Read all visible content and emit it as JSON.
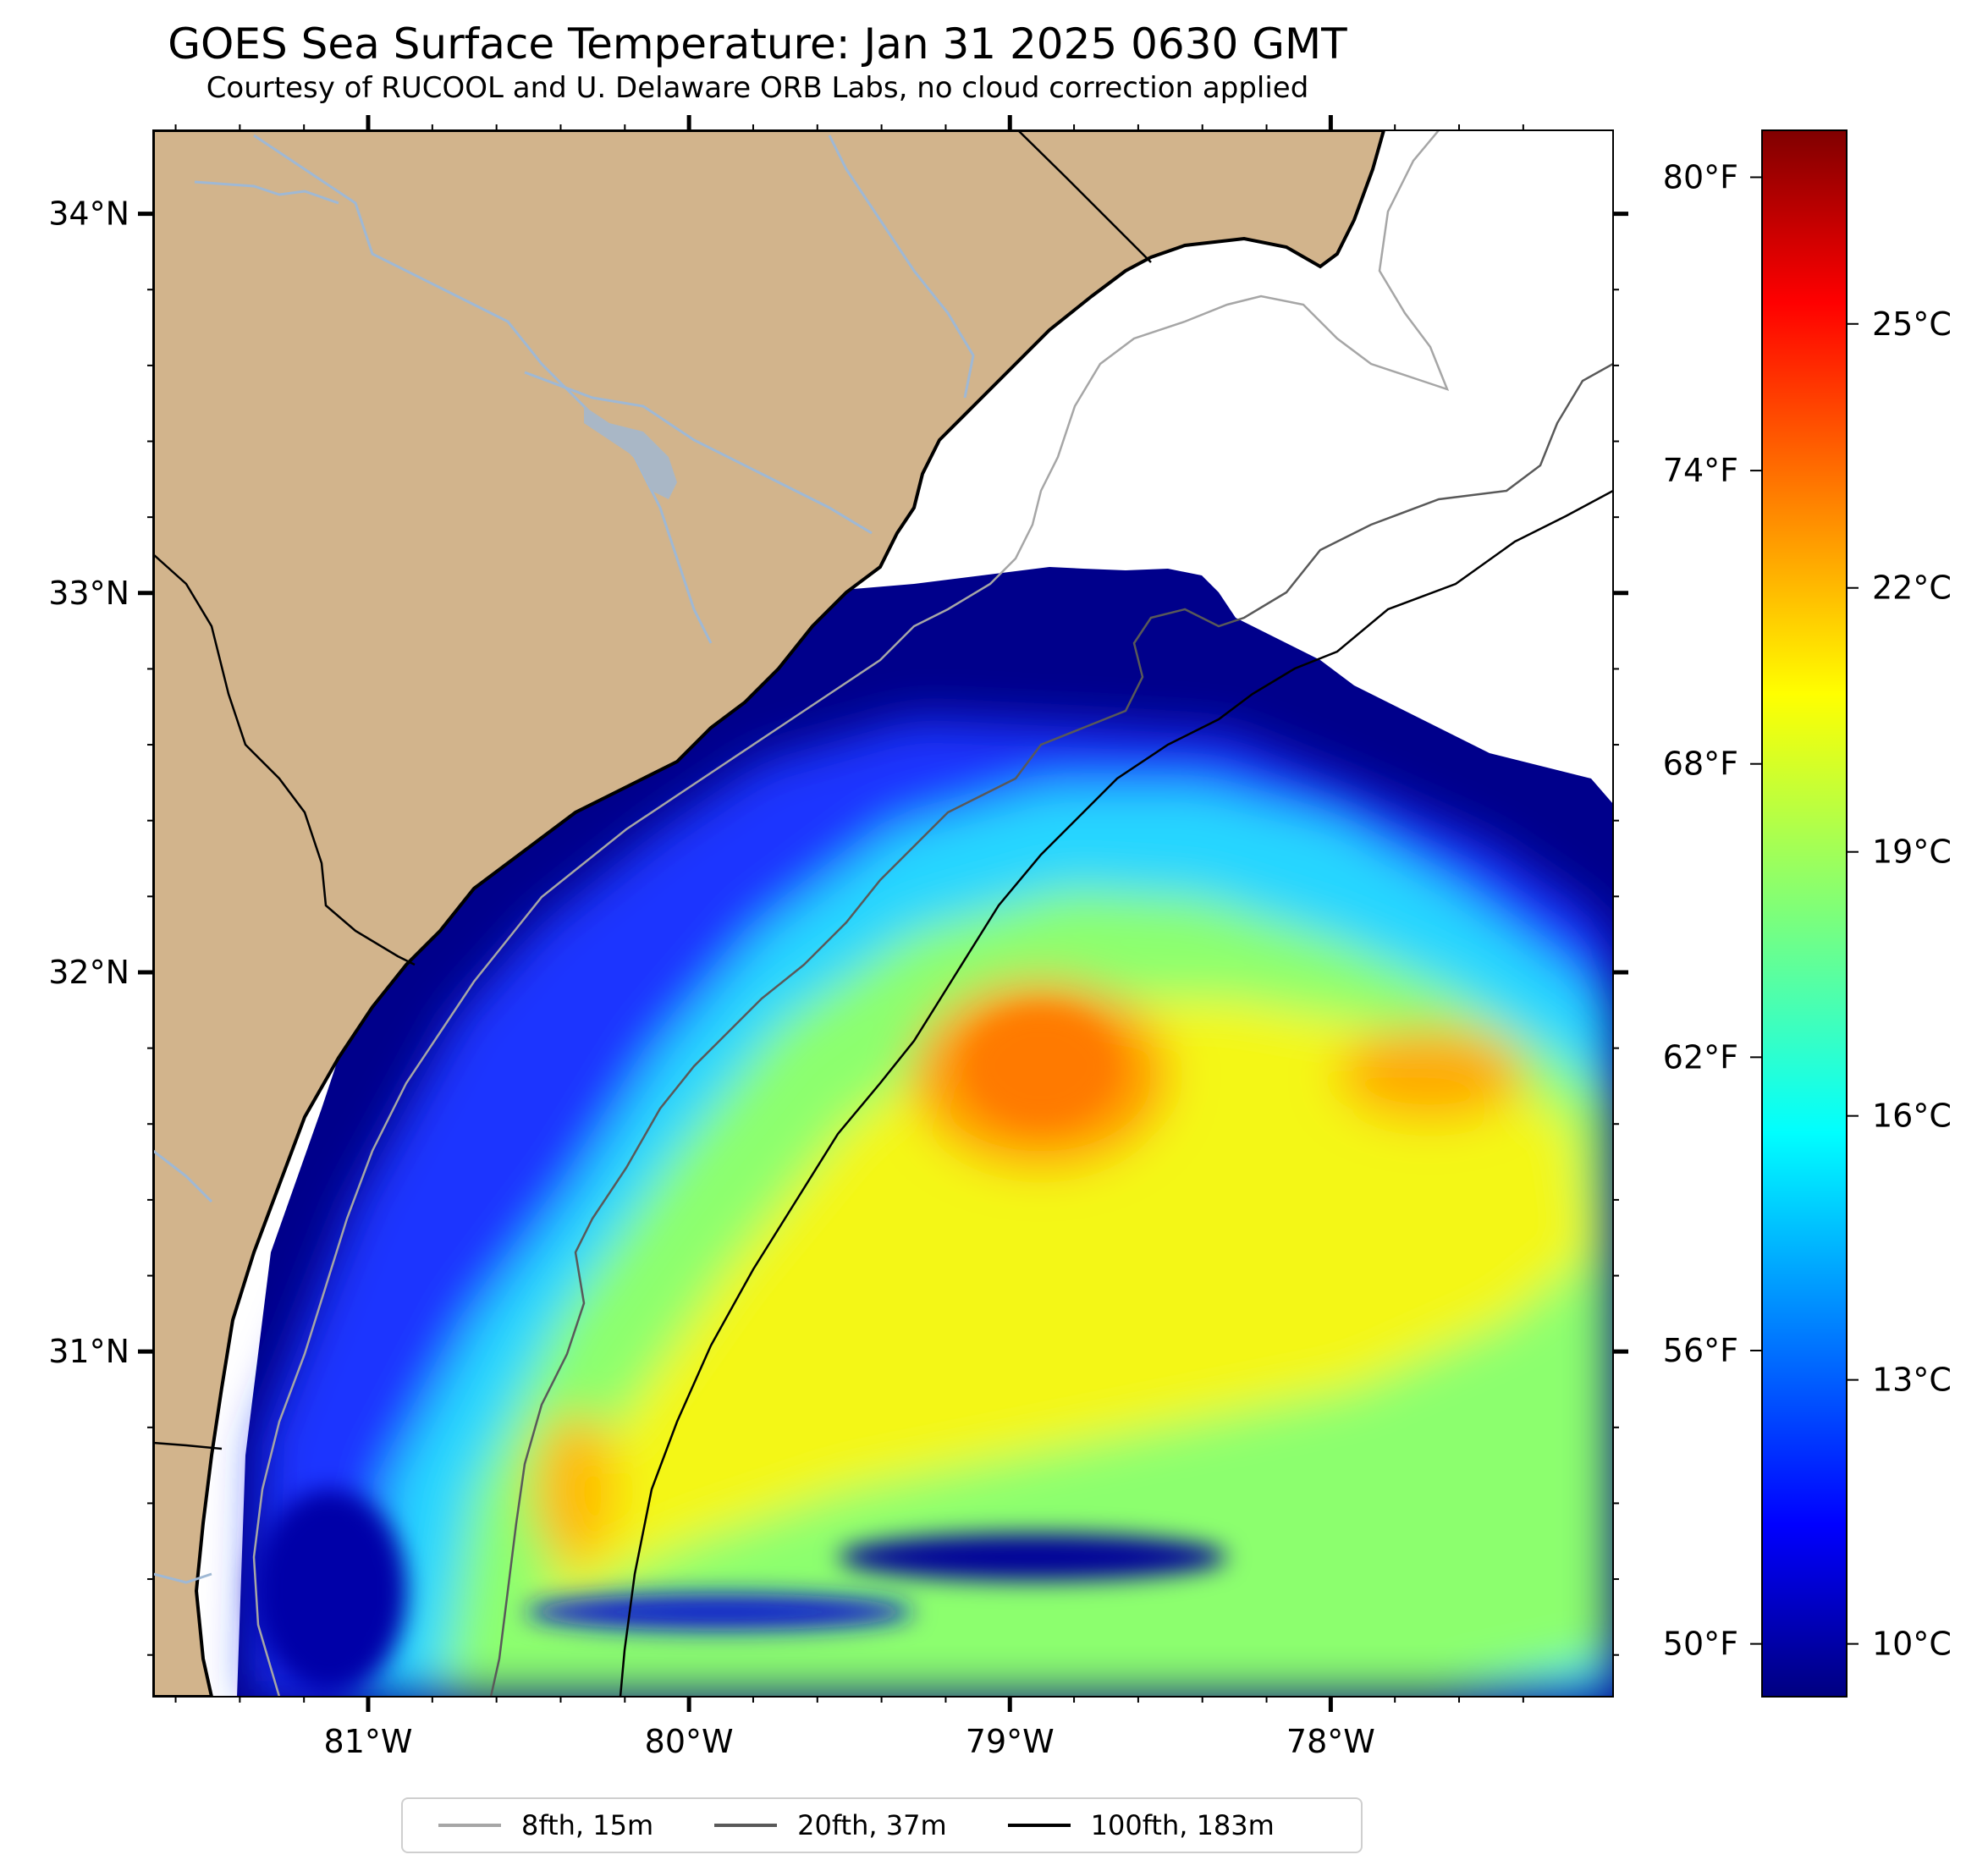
{
  "title": "GOES Sea Surface Temperature: Jan 31 2025 0630 GMT",
  "subtitle": "Courtesy of RUCOOL and U. Delaware ORB Labs, no cloud correction applied",
  "colors": {
    "land": "#d2b48c",
    "no_data": "#ffffff",
    "coastline": "#000000",
    "rivers": "#9fb8d4",
    "contour_8fth": "#a6a6a6",
    "contour_20fth": "#595959",
    "contour_100fth": "#000000"
  },
  "map": {
    "lon_range": [
      -81.67,
      -77.12
    ],
    "lat_range": [
      30.09,
      34.22
    ],
    "lat_ticks": [
      {
        "value": 34,
        "label": "34°N"
      },
      {
        "value": 33,
        "label": "33°N"
      },
      {
        "value": 32,
        "label": "32°N"
      },
      {
        "value": 31,
        "label": "31°N"
      }
    ],
    "lon_ticks": [
      {
        "value": -81,
        "label": "81°W"
      },
      {
        "value": -80,
        "label": "80°W"
      },
      {
        "value": -79,
        "label": "79°W"
      },
      {
        "value": -78,
        "label": "78°W"
      }
    ]
  },
  "colorbar": {
    "colormap": "jet",
    "range_c": [
      9.4,
      27.2
    ],
    "celsius_ticks": [
      {
        "value": 10,
        "label": "10°C"
      },
      {
        "value": 13,
        "label": "13°C"
      },
      {
        "value": 16,
        "label": "16°C"
      },
      {
        "value": 19,
        "label": "19°C"
      },
      {
        "value": 22,
        "label": "22°C"
      },
      {
        "value": 25,
        "label": "25°C"
      }
    ],
    "fahrenheit_ticks": [
      {
        "value": 50,
        "label": "50°F"
      },
      {
        "value": 56,
        "label": "56°F"
      },
      {
        "value": 62,
        "label": "62°F"
      },
      {
        "value": 68,
        "label": "68°F"
      },
      {
        "value": 74,
        "label": "74°F"
      },
      {
        "value": 80,
        "label": "80°F"
      }
    ]
  },
  "sst_features": [
    {
      "name": "warm core",
      "lon": -79.0,
      "lat": 31.7,
      "temp_c": 23.0
    },
    {
      "name": "warm patch east",
      "lon": -77.6,
      "lat": 31.7,
      "temp_c": 22.0
    },
    {
      "name": "cold shelf water",
      "lon": -79.5,
      "lat": 32.8,
      "temp_c": 10.0
    },
    {
      "name": "cold filament south",
      "lon": -79.0,
      "lat": 30.35,
      "temp_c": 10.5
    }
  ],
  "legend": {
    "items": [
      {
        "label": "8fth, 15m"
      },
      {
        "label": "20fth, 37m"
      },
      {
        "label": "100fth, 183m"
      }
    ]
  }
}
